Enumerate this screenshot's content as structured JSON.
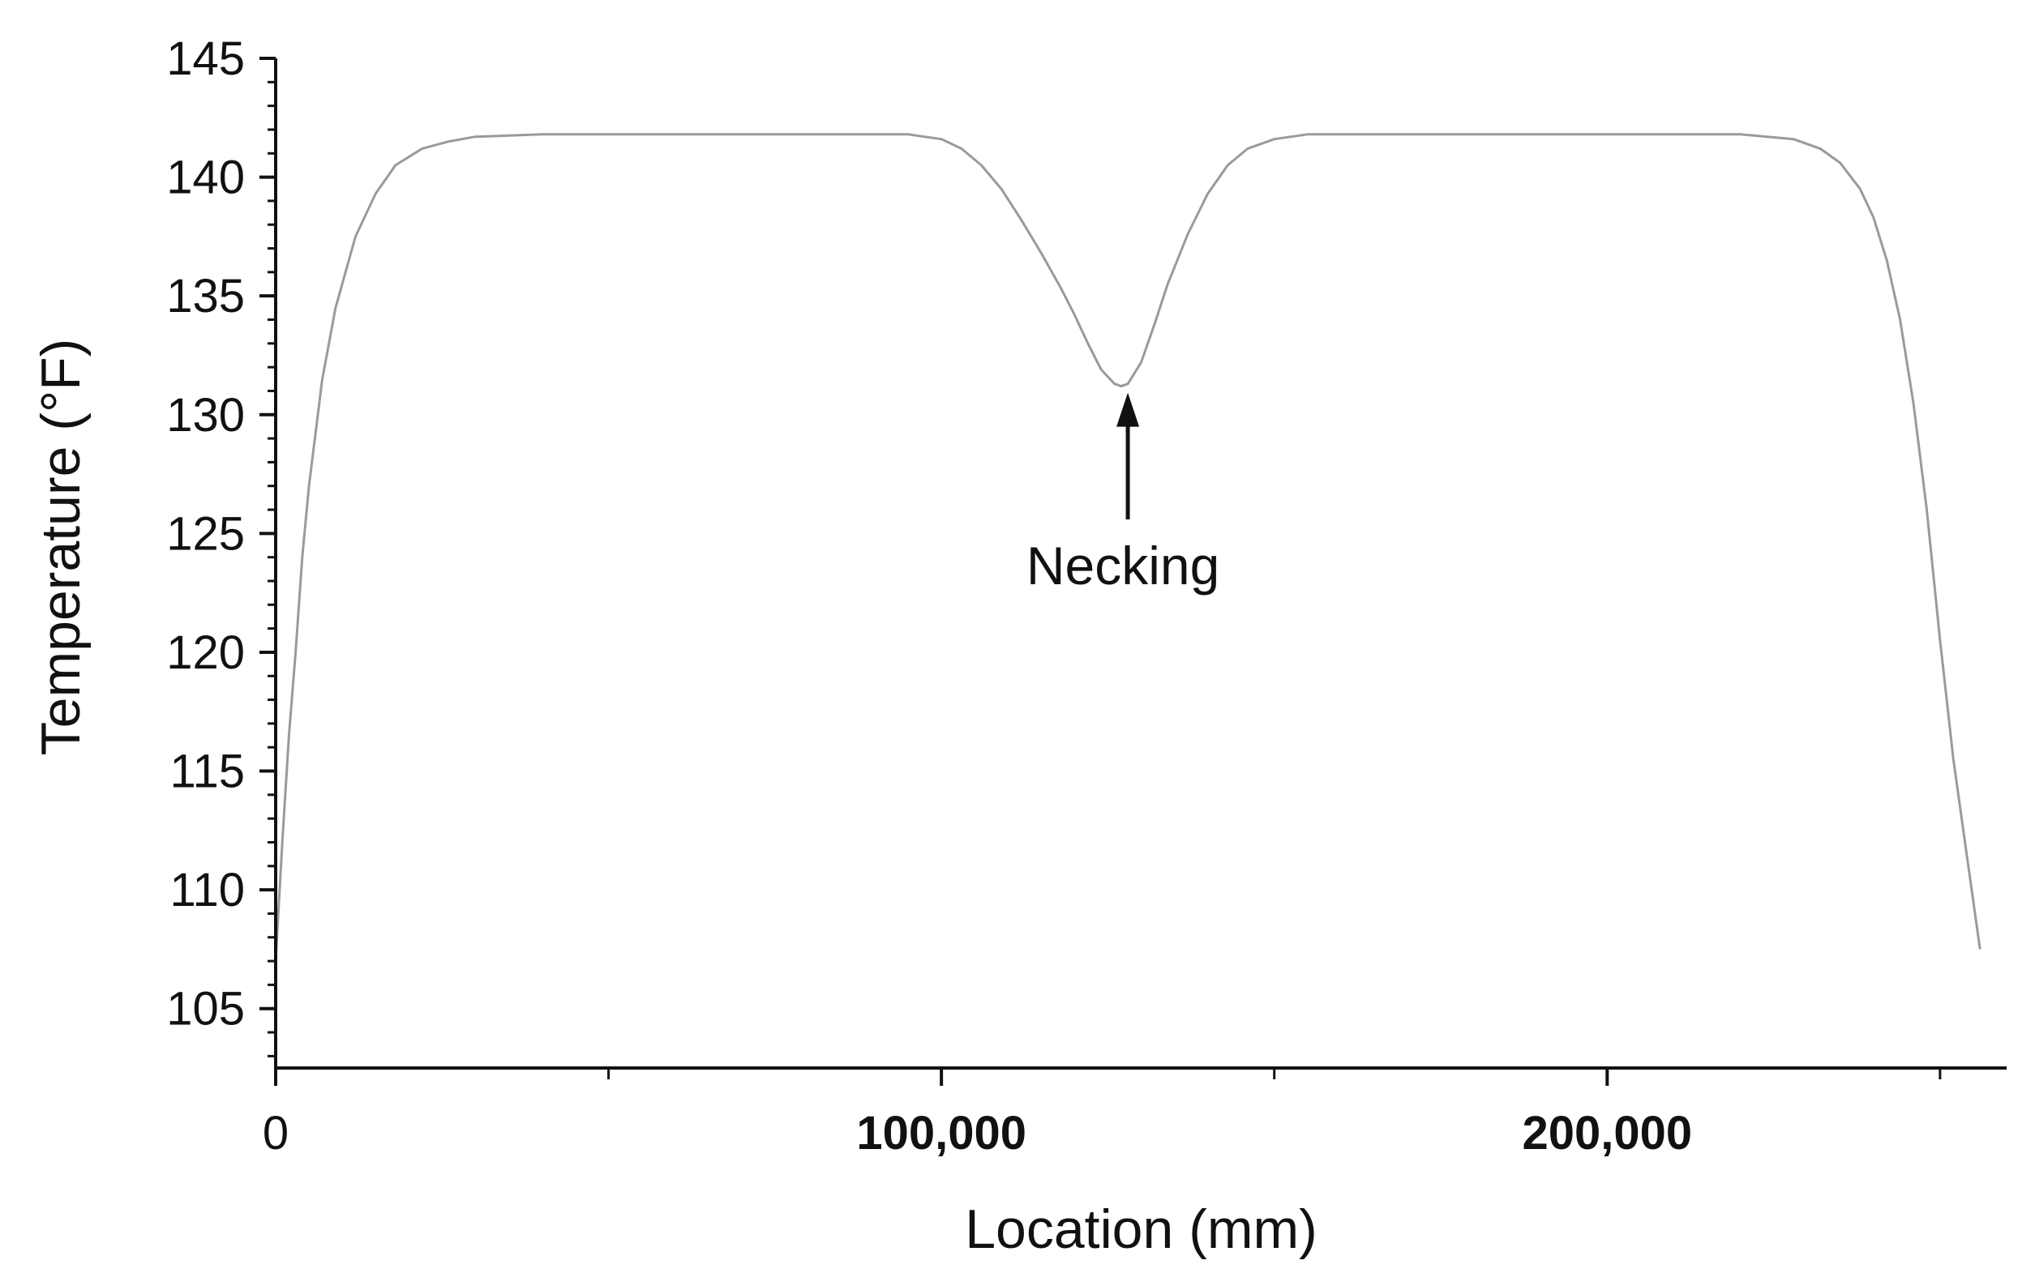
{
  "chart_data": {
    "type": "line",
    "title": "",
    "xlabel": "Location (mm)",
    "ylabel": "Temperature (°F)",
    "xlim": [
      0,
      260000
    ],
    "ylim": [
      102.5,
      145
    ],
    "yticks": [
      {
        "value": 105,
        "label": "105"
      },
      {
        "value": 110,
        "label": "110"
      },
      {
        "value": 115,
        "label": "115"
      },
      {
        "value": 120,
        "label": "120"
      },
      {
        "value": 125,
        "label": "125"
      },
      {
        "value": 130,
        "label": "130"
      },
      {
        "value": 135,
        "label": "135"
      },
      {
        "value": 140,
        "label": "140"
      },
      {
        "value": 145,
        "label": "145"
      }
    ],
    "xticks": [
      {
        "value": 0,
        "label": "0",
        "bold": false
      },
      {
        "value": 100000,
        "label": "100,000",
        "bold": true
      },
      {
        "value": 200000,
        "label": "200,000",
        "bold": true
      }
    ],
    "x_minor_ticks": [
      50000,
      150000,
      250000
    ],
    "y_minor_step": 1,
    "grid": false,
    "line_color": "#9a9a9a",
    "axis_color": "#111111",
    "series": [
      {
        "x": [
          0,
          1000,
          2000,
          3000,
          4000,
          5000,
          7000,
          9000,
          12000,
          15000,
          18000,
          22000,
          26000,
          30000,
          40000,
          60000,
          80000,
          95000,
          100000,
          103000,
          106000,
          109000,
          112000,
          115000,
          118000,
          120000,
          122000,
          124000,
          126000,
          127000,
          128000,
          130000,
          132000,
          134000,
          137000,
          140000,
          143000,
          146000,
          150000,
          155000,
          170000,
          200000,
          220000,
          228000,
          232000,
          235000,
          238000,
          240000,
          242000,
          244000,
          246000,
          248000,
          250000,
          252000,
          254000,
          256000
        ],
        "y": [
          107,
          112,
          116.5,
          120,
          124,
          127,
          131.5,
          134.5,
          137.5,
          139.3,
          140.5,
          141.2,
          141.5,
          141.7,
          141.8,
          141.8,
          141.8,
          141.8,
          141.6,
          141.2,
          140.5,
          139.5,
          138.2,
          136.8,
          135.3,
          134.2,
          133.0,
          131.9,
          131.3,
          131.2,
          131.3,
          132.2,
          133.8,
          135.5,
          137.6,
          139.3,
          140.5,
          141.2,
          141.6,
          141.8,
          141.8,
          141.8,
          141.8,
          141.6,
          141.2,
          140.6,
          139.5,
          138.3,
          136.5,
          134.0,
          130.5,
          126.0,
          120.5,
          115.5,
          111.5,
          107.5
        ]
      }
    ],
    "annotations": [
      {
        "text": "Necking",
        "x": 128000,
        "y": 126,
        "arrow_to": [
          128000,
          131.2
        ]
      }
    ]
  }
}
